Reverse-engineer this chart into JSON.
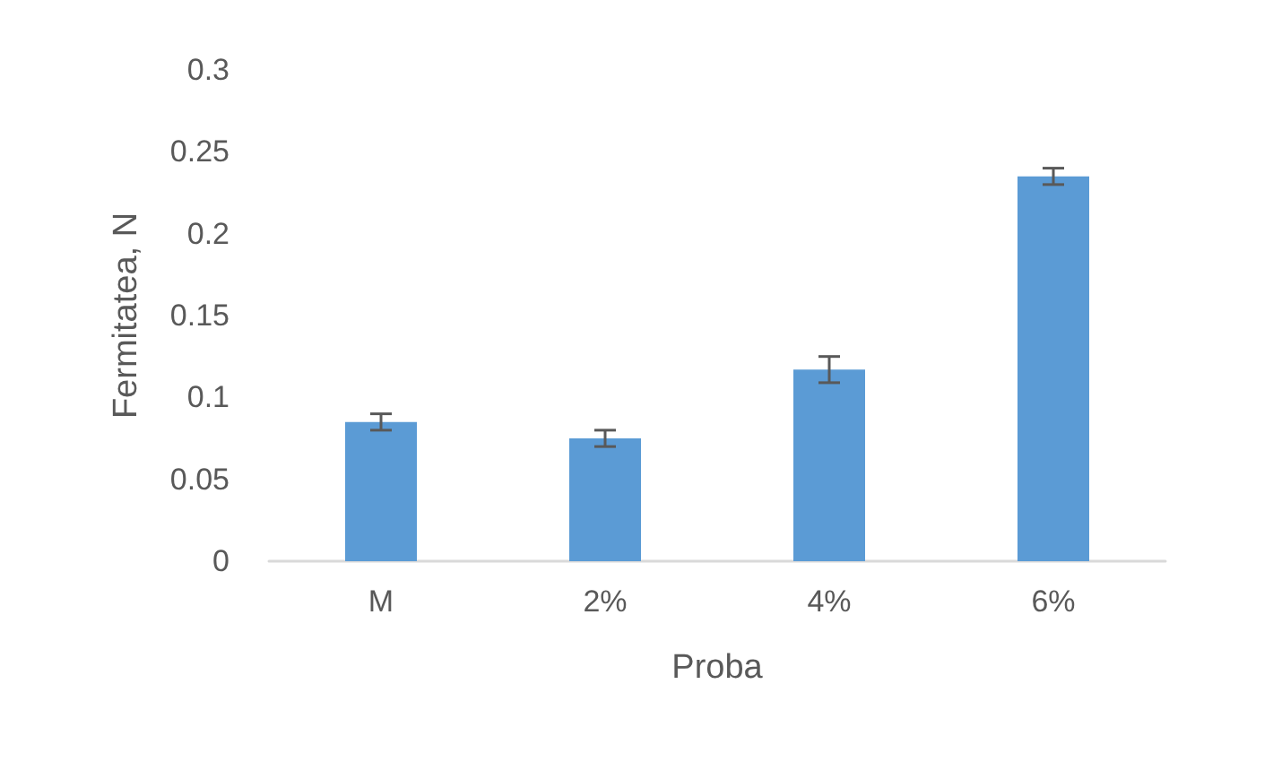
{
  "chart_data": {
    "type": "bar",
    "xlabel": "Proba",
    "ylabel": "Fermitatea, N",
    "categories": [
      "M",
      "2%",
      "4%",
      "6%"
    ],
    "values": [
      0.085,
      0.075,
      0.117,
      0.235
    ],
    "errors": [
      0.005,
      0.005,
      0.008,
      0.005
    ],
    "color": "#5b9bd5",
    "ylim": [
      0,
      0.3
    ],
    "yticks": [
      0,
      0.05,
      0.1,
      0.15,
      0.2,
      0.25,
      0.3
    ],
    "grid": false
  }
}
